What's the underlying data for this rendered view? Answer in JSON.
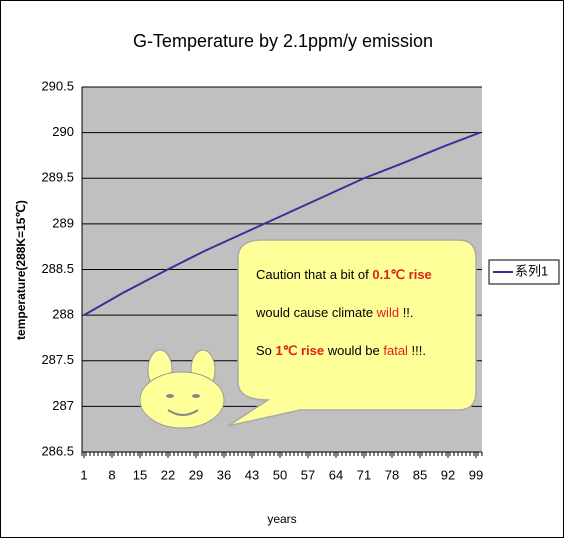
{
  "chart_data": {
    "type": "line",
    "title": "G-Temperature by 2.1ppm/y emission",
    "x_label": "years",
    "y_label": "temperature(288K=15℃)",
    "x": [
      1,
      11,
      21,
      31,
      41,
      51,
      61,
      71,
      81,
      91,
      100
    ],
    "series": [
      {
        "name": "系列1",
        "color": "#333399",
        "values": [
          288,
          288.25,
          288.48,
          288.7,
          288.9,
          289.1,
          289.3,
          289.5,
          289.67,
          289.85,
          290
        ]
      }
    ],
    "xlim": [
      1,
      100
    ],
    "xticks": [
      1,
      8,
      15,
      22,
      29,
      36,
      43,
      50,
      57,
      64,
      71,
      78,
      85,
      92,
      99
    ],
    "ylim": [
      286.5,
      290.5
    ],
    "yticks": [
      286.5,
      287,
      287.5,
      288,
      288.5,
      289,
      289.5,
      290,
      290.5
    ],
    "grid": true,
    "legend": "right",
    "annotation": [
      [
        "Caution that a bit of ",
        "0.1℃ rise"
      ],
      [
        "would cause climate ",
        "wild",
        " !!."
      ],
      [
        "So ",
        "1℃ rise",
        " would be ",
        "fatal",
        " !!!."
      ]
    ]
  }
}
